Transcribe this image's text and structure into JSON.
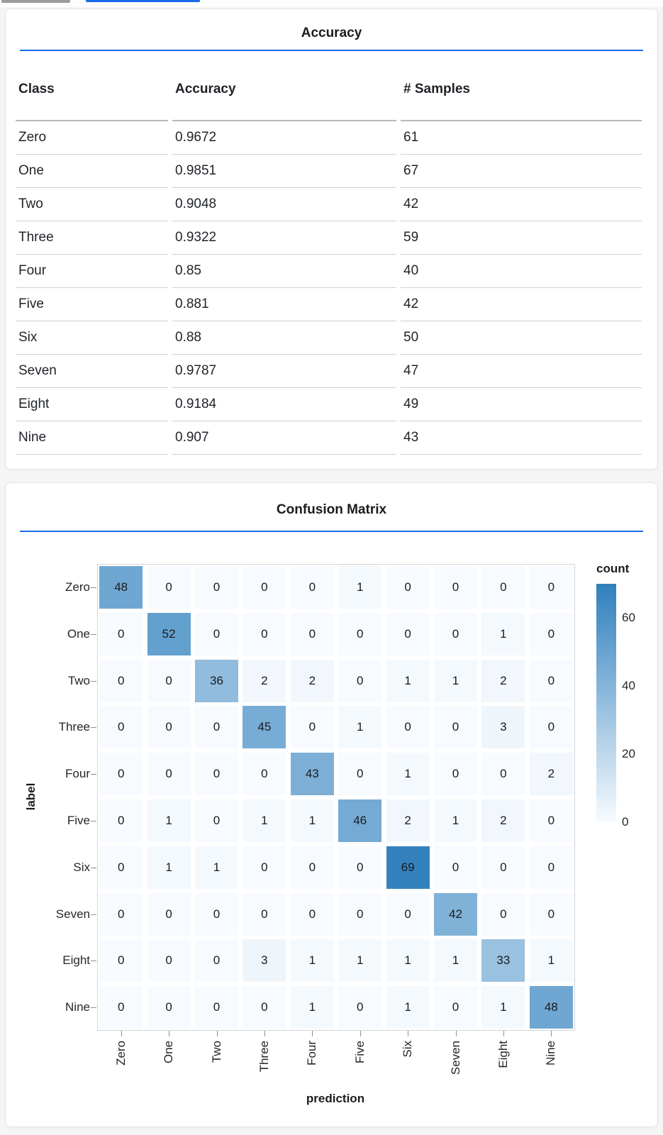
{
  "page": {
    "accent_color": "#1a6ce8",
    "background_color": "#f5f5f6",
    "tab_indicator_inactive_color": "#9b9b9b",
    "tab_indicator_active_color": "#1a6ce8"
  },
  "chart_data": [
    {
      "type": "table",
      "title": "Accuracy",
      "columns": [
        "Class",
        "Accuracy",
        "# Samples"
      ],
      "rows": [
        [
          "Zero",
          "0.9672",
          "61"
        ],
        [
          "One",
          "0.9851",
          "67"
        ],
        [
          "Two",
          "0.9048",
          "42"
        ],
        [
          "Three",
          "0.9322",
          "59"
        ],
        [
          "Four",
          "0.85",
          "40"
        ],
        [
          "Five",
          "0.881",
          "42"
        ],
        [
          "Six",
          "0.88",
          "50"
        ],
        [
          "Seven",
          "0.9787",
          "47"
        ],
        [
          "Eight",
          "0.9184",
          "49"
        ],
        [
          "Nine",
          "0.907",
          "43"
        ]
      ]
    },
    {
      "type": "heatmap",
      "title": "Confusion Matrix",
      "xlabel": "prediction",
      "ylabel": "label",
      "x_categories": [
        "Zero",
        "One",
        "Two",
        "Three",
        "Four",
        "Five",
        "Six",
        "Seven",
        "Eight",
        "Nine"
      ],
      "y_categories": [
        "Zero",
        "One",
        "Two",
        "Three",
        "Four",
        "Five",
        "Six",
        "Seven",
        "Eight",
        "Nine"
      ],
      "values": [
        [
          48,
          0,
          0,
          0,
          0,
          1,
          0,
          0,
          0,
          0
        ],
        [
          0,
          52,
          0,
          0,
          0,
          0,
          0,
          0,
          1,
          0
        ],
        [
          0,
          0,
          36,
          2,
          2,
          0,
          1,
          1,
          2,
          0
        ],
        [
          0,
          0,
          0,
          45,
          0,
          1,
          0,
          0,
          3,
          0
        ],
        [
          0,
          0,
          0,
          0,
          43,
          0,
          1,
          0,
          0,
          2
        ],
        [
          0,
          1,
          0,
          1,
          1,
          46,
          2,
          1,
          2,
          0
        ],
        [
          0,
          1,
          1,
          0,
          0,
          0,
          69,
          0,
          0,
          0
        ],
        [
          0,
          0,
          0,
          0,
          0,
          0,
          0,
          42,
          0,
          0
        ],
        [
          0,
          0,
          0,
          3,
          1,
          1,
          1,
          1,
          33,
          1
        ],
        [
          0,
          0,
          0,
          0,
          1,
          0,
          1,
          0,
          1,
          48
        ]
      ],
      "legend": {
        "title": "count",
        "ticks": [
          0,
          20,
          40,
          60
        ],
        "domain": [
          0,
          70
        ],
        "colors": [
          "#f7fbff",
          "#3080bd"
        ],
        "position": "right"
      },
      "grid": false
    }
  ]
}
